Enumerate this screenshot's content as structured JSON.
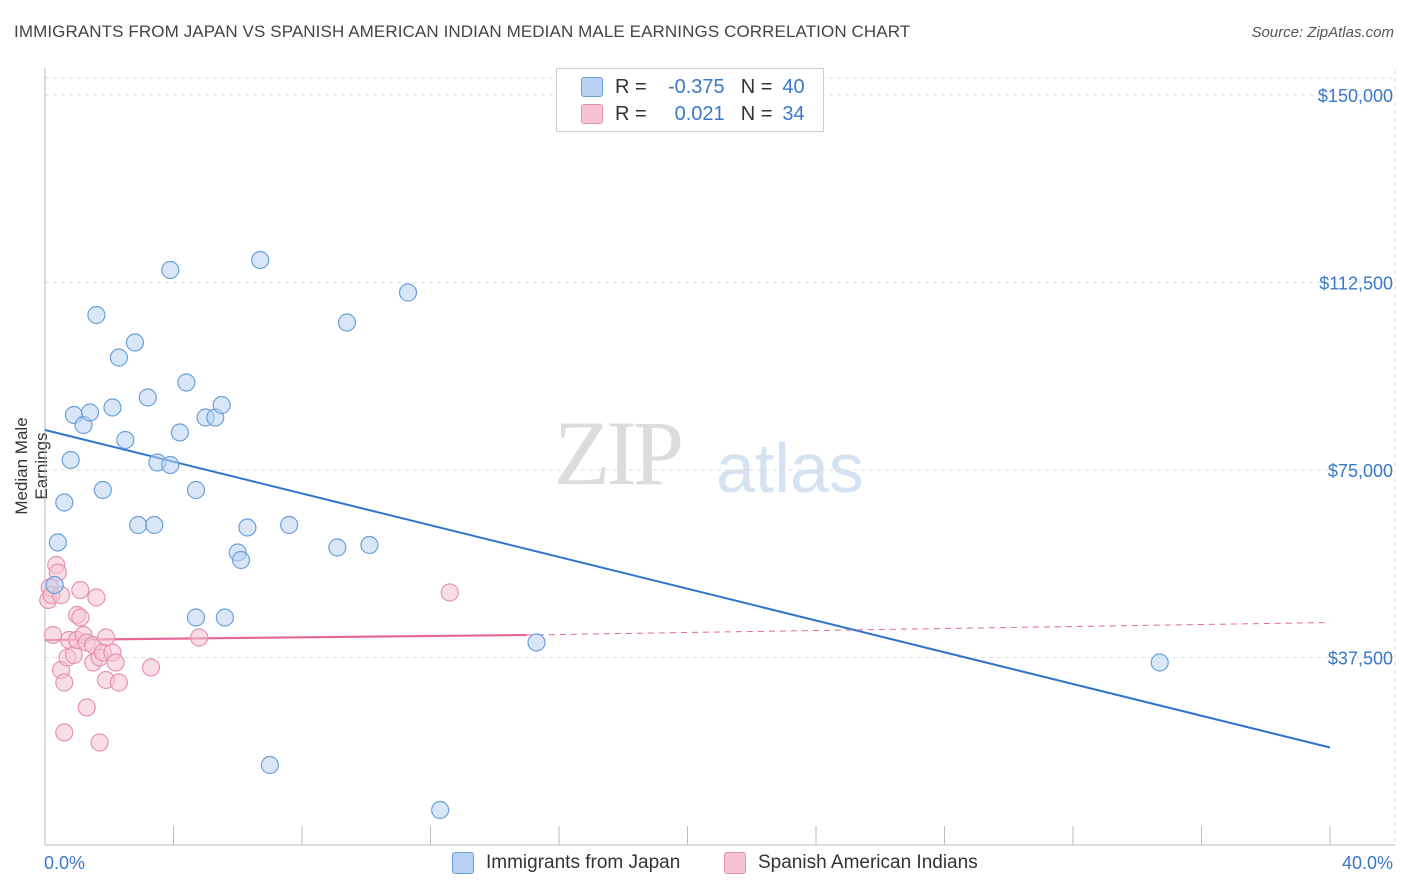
{
  "title": "IMMIGRANTS FROM JAPAN VS SPANISH AMERICAN INDIAN MEDIAN MALE EARNINGS CORRELATION CHART",
  "source": "Source: ZipAtlas.com",
  "watermark": {
    "zip": "ZIP",
    "atlas": "atlas"
  },
  "legend": {
    "r_label": "R =",
    "n_label": "N =",
    "series": [
      {
        "r": "-0.375",
        "n": "40"
      },
      {
        "r": "0.021",
        "n": "34"
      }
    ]
  },
  "colors": {
    "japan_fill": "#b8d2f2",
    "japan_stroke": "#6a9fd8",
    "japan_line": "#2f74cc",
    "sai_fill": "#f6c3d4",
    "sai_stroke": "#e592b0",
    "sai_line": "#e5679a",
    "tick_text": "#3a78c9",
    "grid": "#dddddd"
  },
  "chart_data": {
    "type": "scatter",
    "title": "IMMIGRANTS FROM JAPAN VS SPANISH AMERICAN INDIAN MEDIAN MALE EARNINGS CORRELATION CHART",
    "xlabel": "",
    "ylabel": "Median Male Earnings",
    "xlim": [
      0,
      40
    ],
    "ylim": [
      0,
      155000
    ],
    "x_tick_labels": [
      "0.0%",
      "40.0%"
    ],
    "y_ticks": [
      37500,
      75000,
      112500,
      150000
    ],
    "y_tick_labels": [
      "$37,500",
      "$75,000",
      "$112,500",
      "$150,000"
    ],
    "series": [
      {
        "name": "Immigrants from Japan",
        "points": [
          [
            0.3,
            52000
          ],
          [
            0.4,
            60500
          ],
          [
            0.6,
            68500
          ],
          [
            0.8,
            77000
          ],
          [
            0.9,
            86000
          ],
          [
            1.2,
            84000
          ],
          [
            1.4,
            86500
          ],
          [
            1.6,
            106000
          ],
          [
            1.8,
            71000
          ],
          [
            2.1,
            87500
          ],
          [
            2.3,
            97500
          ],
          [
            2.5,
            81000
          ],
          [
            2.8,
            100500
          ],
          [
            2.9,
            64000
          ],
          [
            3.2,
            89500
          ],
          [
            3.4,
            64000
          ],
          [
            3.5,
            76500
          ],
          [
            3.9,
            76000
          ],
          [
            3.9,
            115000
          ],
          [
            4.2,
            82500
          ],
          [
            4.4,
            92500
          ],
          [
            4.7,
            71000
          ],
          [
            4.7,
            45500
          ],
          [
            5.0,
            85500
          ],
          [
            5.3,
            85500
          ],
          [
            5.5,
            88000
          ],
          [
            5.6,
            45500
          ],
          [
            6.0,
            58500
          ],
          [
            6.1,
            57000
          ],
          [
            6.3,
            63500
          ],
          [
            6.7,
            117000
          ],
          [
            7.0,
            16000
          ],
          [
            7.6,
            64000
          ],
          [
            9.1,
            59500
          ],
          [
            9.4,
            104500
          ],
          [
            10.1,
            60000
          ],
          [
            11.3,
            110500
          ],
          [
            12.3,
            7000
          ],
          [
            15.3,
            40500
          ],
          [
            34.7,
            36500
          ]
        ],
        "trend": {
          "x": [
            0,
            40
          ],
          "y": [
            83000,
            19500
          ]
        }
      },
      {
        "name": "Spanish American Indians",
        "points": [
          [
            0.1,
            49000
          ],
          [
            0.15,
            51500
          ],
          [
            0.2,
            50000
          ],
          [
            0.25,
            42000
          ],
          [
            0.35,
            56000
          ],
          [
            0.4,
            54500
          ],
          [
            0.5,
            50000
          ],
          [
            0.5,
            35000
          ],
          [
            0.6,
            22500
          ],
          [
            0.6,
            32500
          ],
          [
            0.7,
            37500
          ],
          [
            0.75,
            41000
          ],
          [
            0.9,
            38000
          ],
          [
            1.0,
            41000
          ],
          [
            1.0,
            46000
          ],
          [
            1.1,
            51000
          ],
          [
            1.1,
            45500
          ],
          [
            1.2,
            42000
          ],
          [
            1.3,
            27500
          ],
          [
            1.3,
            40500
          ],
          [
            1.5,
            36500
          ],
          [
            1.5,
            40000
          ],
          [
            1.6,
            49500
          ],
          [
            1.7,
            37500
          ],
          [
            1.7,
            20500
          ],
          [
            1.8,
            38500
          ],
          [
            1.9,
            41500
          ],
          [
            1.9,
            33000
          ],
          [
            2.1,
            38500
          ],
          [
            2.2,
            36500
          ],
          [
            2.3,
            32500
          ],
          [
            3.3,
            35500
          ],
          [
            4.8,
            41500
          ],
          [
            12.6,
            50500
          ]
        ],
        "trend": {
          "x": [
            0,
            15
          ],
          "y": [
            41000,
            42000
          ]
        },
        "trend_ext": {
          "x": [
            15,
            40
          ],
          "y": [
            42000,
            44500
          ]
        }
      }
    ]
  },
  "bottom_legend": [
    "Immigrants from Japan",
    "Spanish American Indians"
  ]
}
